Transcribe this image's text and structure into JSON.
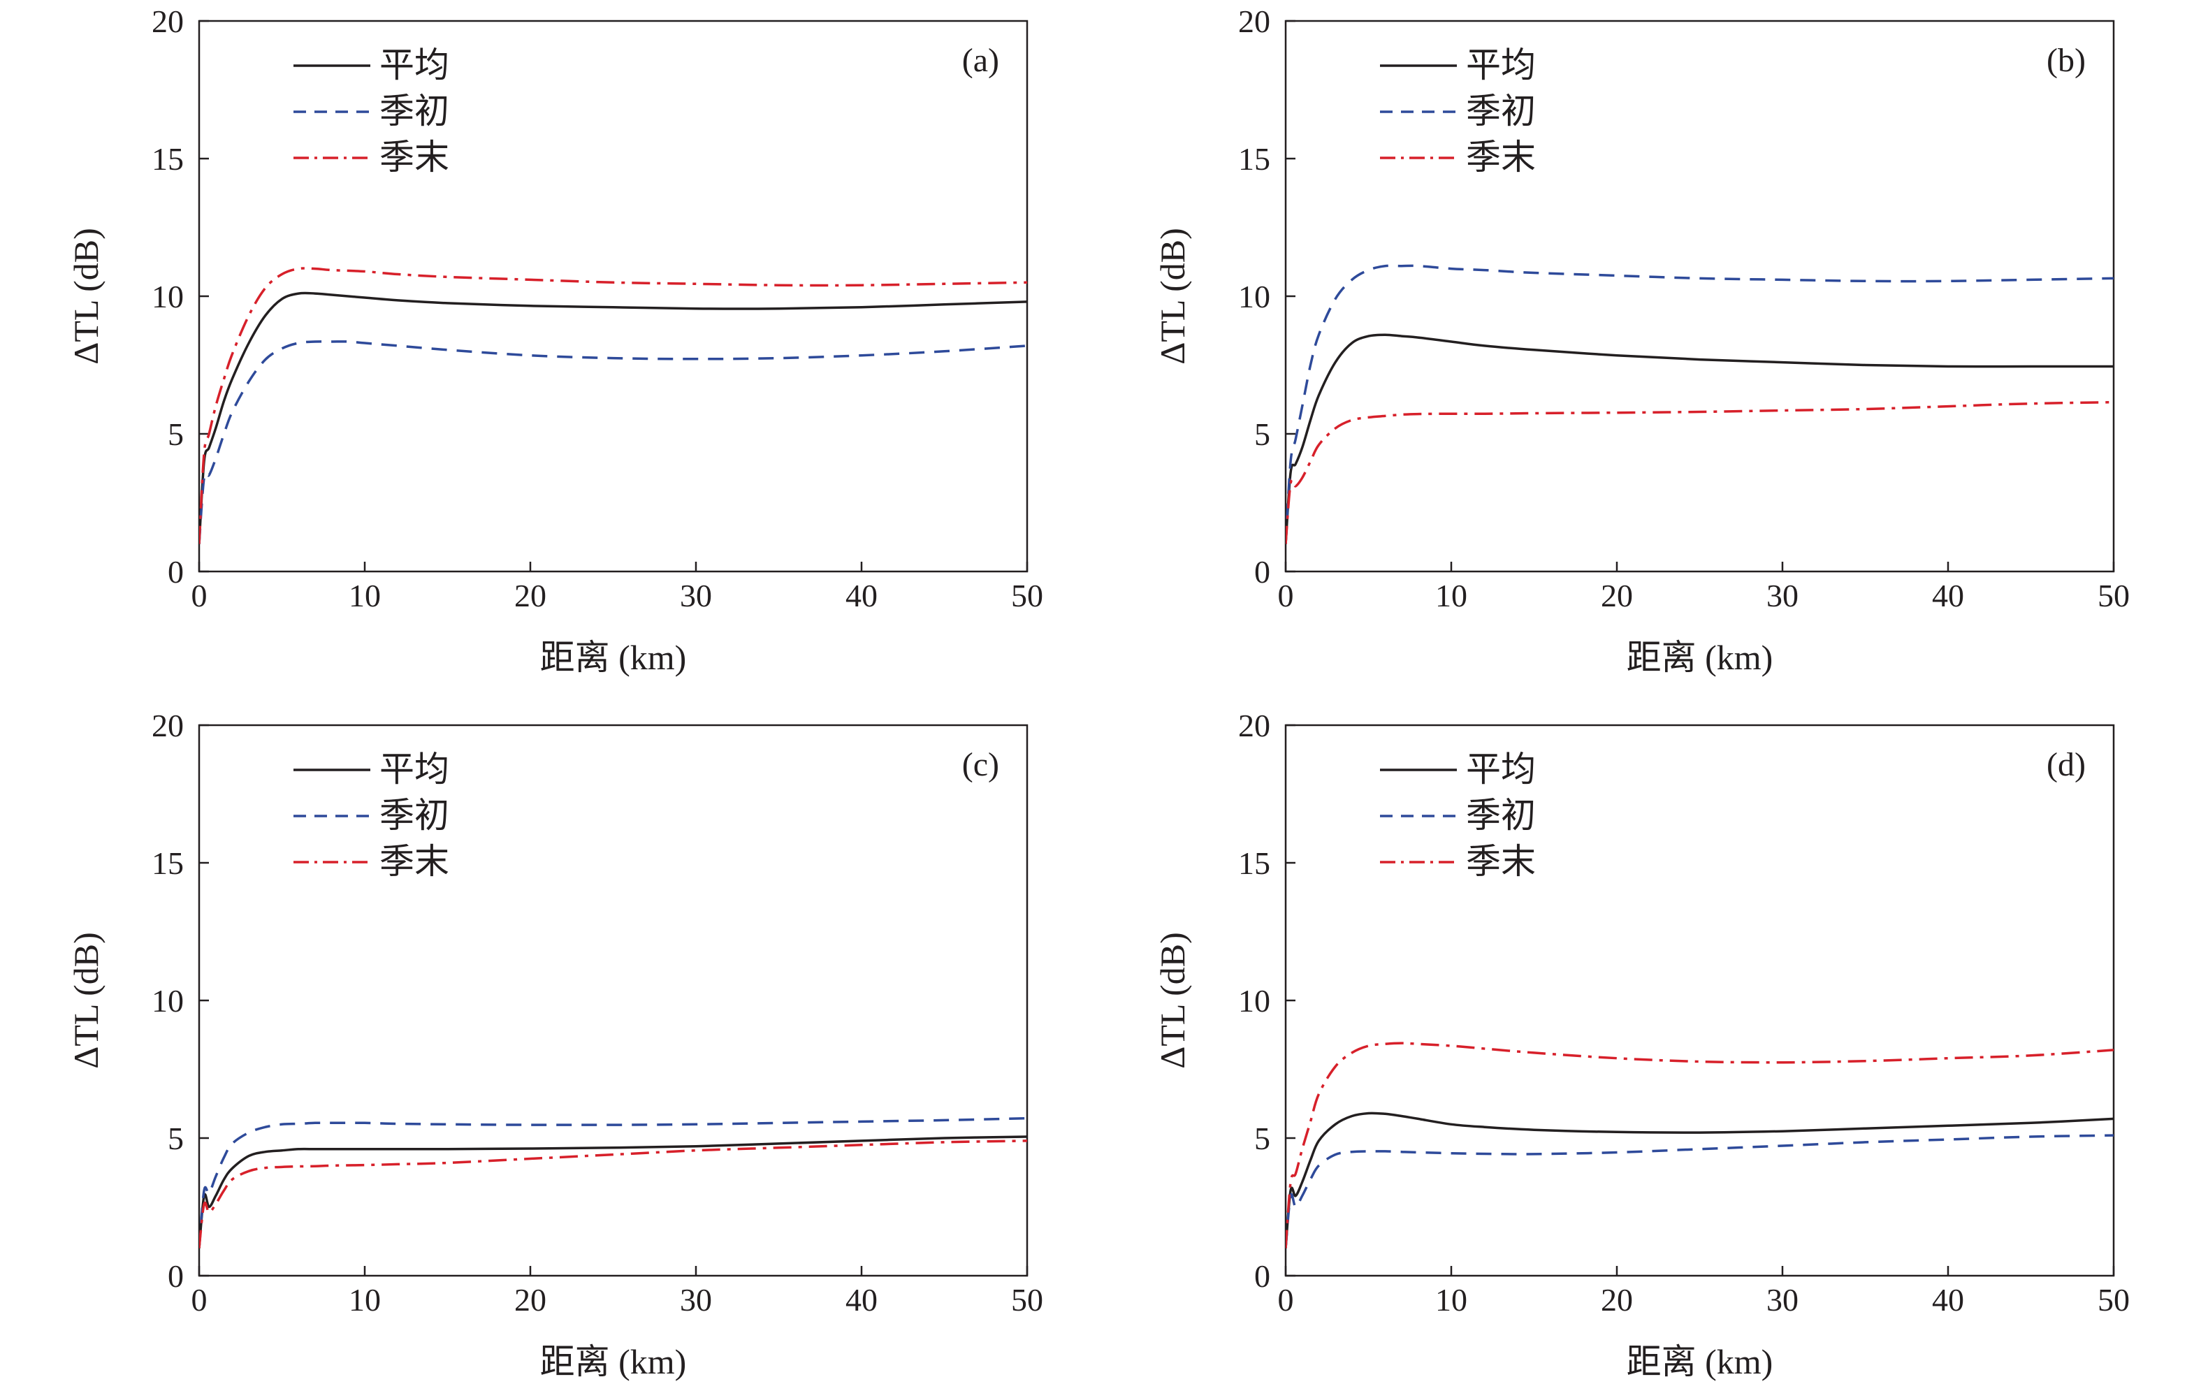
{
  "figure": {
    "legend_labels": {
      "avg": "平均",
      "early": "季初",
      "late": "季末"
    },
    "colors": {
      "avg": "#231f20",
      "early": "#2e4a9a",
      "late": "#d7202a",
      "axis": "#231f20"
    }
  },
  "chart_data": [
    {
      "panel_label": "(a)",
      "type": "line",
      "xlabel": "距离 (km)",
      "ylabel": "ΔTL (dB)",
      "xlim": [
        0,
        50
      ],
      "ylim": [
        0,
        20
      ],
      "xticks": [
        0,
        10,
        20,
        30,
        40,
        50
      ],
      "yticks": [
        0,
        5,
        10,
        15,
        20
      ],
      "grid": false,
      "legend_position": "top-left",
      "series": [
        {
          "name": "平均",
          "key": "avg",
          "style": "solid",
          "x": [
            0,
            0.3,
            0.6,
            1,
            1.5,
            2,
            3,
            4,
            5,
            6,
            7,
            8,
            10,
            12,
            15,
            20,
            25,
            30,
            35,
            40,
            45,
            50
          ],
          "y": [
            1.0,
            4.0,
            4.5,
            5.2,
            6.2,
            7.0,
            8.3,
            9.3,
            9.9,
            10.1,
            10.1,
            10.05,
            9.95,
            9.85,
            9.75,
            9.65,
            9.6,
            9.55,
            9.55,
            9.6,
            9.7,
            9.8
          ]
        },
        {
          "name": "季初",
          "key": "early",
          "style": "dashed",
          "x": [
            0,
            0.3,
            0.6,
            1,
            1.5,
            2,
            3,
            4,
            5,
            6,
            7,
            8,
            9,
            10,
            12,
            15,
            20,
            25,
            30,
            35,
            40,
            45,
            50
          ],
          "y": [
            1.0,
            3.4,
            3.5,
            4.1,
            5.0,
            5.8,
            6.9,
            7.7,
            8.1,
            8.3,
            8.35,
            8.35,
            8.35,
            8.3,
            8.2,
            8.05,
            7.85,
            7.75,
            7.72,
            7.75,
            7.85,
            8.0,
            8.2
          ]
        },
        {
          "name": "季末",
          "key": "late",
          "style": "dashdot",
          "x": [
            0,
            0.3,
            0.6,
            1,
            1.5,
            2,
            3,
            4,
            5,
            6,
            7,
            8,
            10,
            12,
            15,
            20,
            25,
            30,
            35,
            40,
            45,
            50
          ],
          "y": [
            1.0,
            4.3,
            5.0,
            6.0,
            7.0,
            7.9,
            9.3,
            10.3,
            10.8,
            11.0,
            11.0,
            10.95,
            10.9,
            10.8,
            10.7,
            10.6,
            10.5,
            10.45,
            10.4,
            10.4,
            10.45,
            10.5
          ]
        }
      ]
    },
    {
      "panel_label": "(b)",
      "type": "line",
      "xlabel": "距离 (km)",
      "ylabel": "ΔTL (dB)",
      "xlim": [
        0,
        50
      ],
      "ylim": [
        0,
        20
      ],
      "xticks": [
        0,
        10,
        20,
        30,
        40,
        50
      ],
      "yticks": [
        0,
        5,
        10,
        15,
        20
      ],
      "grid": false,
      "legend_position": "top-left",
      "series": [
        {
          "name": "平均",
          "key": "avg",
          "style": "solid",
          "x": [
            0,
            0.3,
            0.6,
            1,
            1.5,
            2,
            3,
            4,
            5,
            6,
            7,
            8,
            10,
            12,
            15,
            20,
            25,
            30,
            35,
            40,
            45,
            50
          ],
          "y": [
            1.0,
            3.6,
            3.9,
            4.5,
            5.5,
            6.4,
            7.6,
            8.3,
            8.55,
            8.6,
            8.55,
            8.5,
            8.35,
            8.2,
            8.05,
            7.85,
            7.7,
            7.6,
            7.5,
            7.45,
            7.45,
            7.45
          ]
        },
        {
          "name": "季初",
          "key": "early",
          "style": "dashed",
          "x": [
            0,
            0.3,
            0.6,
            1,
            1.5,
            2,
            3,
            4,
            5,
            6,
            7,
            8,
            10,
            12,
            15,
            20,
            25,
            30,
            35,
            40,
            45,
            50
          ],
          "y": [
            1.0,
            4.0,
            4.8,
            6.0,
            7.5,
            8.6,
            9.9,
            10.6,
            10.95,
            11.1,
            11.1,
            11.1,
            11.0,
            10.95,
            10.85,
            10.75,
            10.65,
            10.6,
            10.55,
            10.55,
            10.6,
            10.65
          ]
        },
        {
          "name": "季末",
          "key": "late",
          "style": "dashdot",
          "x": [
            0,
            0.3,
            0.6,
            1,
            1.5,
            2,
            3,
            4,
            5,
            6,
            7,
            8,
            10,
            12,
            15,
            20,
            25,
            30,
            35,
            40,
            45,
            50
          ],
          "y": [
            1.0,
            3.2,
            3.1,
            3.4,
            4.0,
            4.6,
            5.2,
            5.5,
            5.6,
            5.65,
            5.7,
            5.72,
            5.73,
            5.73,
            5.75,
            5.77,
            5.8,
            5.85,
            5.9,
            6.0,
            6.1,
            6.15
          ]
        }
      ]
    },
    {
      "panel_label": "(c)",
      "type": "line",
      "xlabel": "距离 (km)",
      "ylabel": "ΔTL (dB)",
      "xlim": [
        0,
        50
      ],
      "ylim": [
        0,
        20
      ],
      "xticks": [
        0,
        10,
        20,
        30,
        40,
        50
      ],
      "yticks": [
        0,
        5,
        10,
        15,
        20
      ],
      "grid": false,
      "legend_position": "top-left",
      "series": [
        {
          "name": "平均",
          "key": "avg",
          "style": "solid",
          "x": [
            0,
            0.3,
            0.6,
            1,
            1.5,
            2,
            3,
            4,
            5,
            6,
            7,
            8,
            10,
            12,
            15,
            20,
            25,
            30,
            35,
            40,
            45,
            50
          ],
          "y": [
            1.0,
            2.9,
            2.5,
            2.9,
            3.5,
            3.9,
            4.35,
            4.5,
            4.55,
            4.6,
            4.6,
            4.6,
            4.6,
            4.6,
            4.6,
            4.62,
            4.65,
            4.7,
            4.8,
            4.9,
            5.0,
            5.05
          ]
        },
        {
          "name": "季初",
          "key": "early",
          "style": "dashed",
          "x": [
            0,
            0.3,
            0.6,
            1,
            1.5,
            2,
            3,
            4,
            5,
            6,
            7,
            8,
            10,
            12,
            15,
            20,
            25,
            30,
            35,
            40,
            45,
            50
          ],
          "y": [
            1.0,
            3.1,
            3.0,
            3.6,
            4.3,
            4.8,
            5.2,
            5.4,
            5.5,
            5.52,
            5.55,
            5.55,
            5.55,
            5.52,
            5.5,
            5.48,
            5.48,
            5.5,
            5.55,
            5.6,
            5.65,
            5.72
          ]
        },
        {
          "name": "季末",
          "key": "late",
          "style": "dashdot",
          "x": [
            0,
            0.3,
            0.6,
            1,
            1.5,
            2,
            3,
            4,
            5,
            6,
            7,
            8,
            10,
            12,
            15,
            20,
            25,
            30,
            35,
            40,
            45,
            50
          ],
          "y": [
            1.0,
            2.6,
            2.3,
            2.6,
            3.1,
            3.5,
            3.8,
            3.92,
            3.95,
            3.97,
            3.98,
            4.0,
            4.02,
            4.05,
            4.1,
            4.25,
            4.4,
            4.55,
            4.65,
            4.75,
            4.85,
            4.9
          ]
        }
      ]
    },
    {
      "panel_label": "(d)",
      "type": "line",
      "xlabel": "距离 (km)",
      "ylabel": "ΔTL (dB)",
      "xlim": [
        0,
        50
      ],
      "ylim": [
        0,
        20
      ],
      "xticks": [
        0,
        10,
        20,
        30,
        40,
        50
      ],
      "yticks": [
        0,
        5,
        10,
        15,
        20
      ],
      "grid": false,
      "legend_position": "top-left",
      "series": [
        {
          "name": "平均",
          "key": "avg",
          "style": "solid",
          "x": [
            0,
            0.3,
            0.6,
            1,
            1.5,
            2,
            3,
            4,
            5,
            6,
            7,
            8,
            10,
            12,
            15,
            20,
            25,
            30,
            35,
            40,
            45,
            50
          ],
          "y": [
            1.0,
            3.1,
            2.9,
            3.4,
            4.2,
            4.9,
            5.5,
            5.8,
            5.9,
            5.88,
            5.8,
            5.7,
            5.5,
            5.4,
            5.3,
            5.22,
            5.2,
            5.25,
            5.35,
            5.45,
            5.55,
            5.7
          ]
        },
        {
          "name": "季初",
          "key": "early",
          "style": "dashed",
          "x": [
            0,
            0.3,
            0.6,
            1,
            1.5,
            2,
            3,
            4,
            5,
            6,
            7,
            8,
            10,
            12,
            15,
            20,
            25,
            30,
            35,
            40,
            45,
            50
          ],
          "y": [
            1.0,
            2.9,
            2.5,
            2.9,
            3.5,
            4.0,
            4.4,
            4.5,
            4.52,
            4.52,
            4.5,
            4.48,
            4.45,
            4.43,
            4.42,
            4.48,
            4.6,
            4.72,
            4.85,
            4.95,
            5.05,
            5.1
          ]
        },
        {
          "name": "季末",
          "key": "late",
          "style": "dashdot",
          "x": [
            0,
            0.3,
            0.6,
            1,
            1.5,
            2,
            3,
            4,
            5,
            6,
            7,
            8,
            10,
            12,
            15,
            20,
            25,
            30,
            35,
            40,
            45,
            50
          ],
          "y": [
            1.0,
            3.4,
            3.7,
            4.6,
            5.6,
            6.6,
            7.6,
            8.1,
            8.35,
            8.42,
            8.45,
            8.42,
            8.35,
            8.25,
            8.1,
            7.9,
            7.78,
            7.75,
            7.8,
            7.9,
            8.0,
            8.2
          ]
        }
      ]
    }
  ]
}
